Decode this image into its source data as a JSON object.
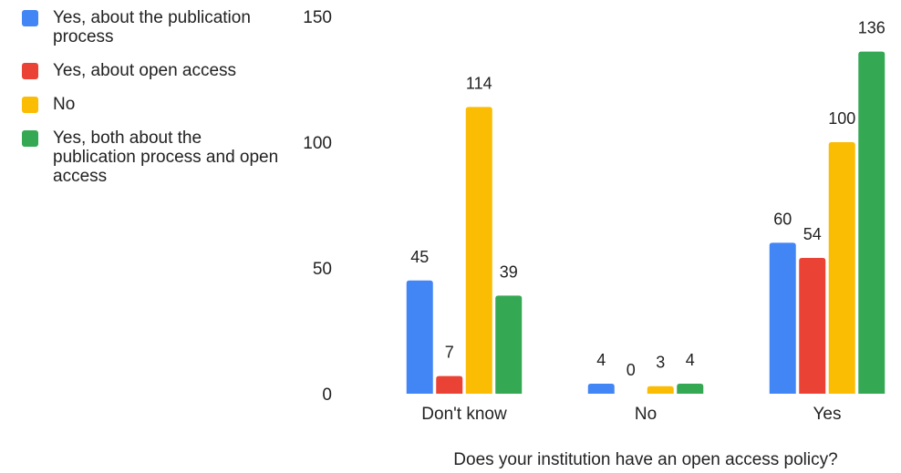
{
  "chart_data": {
    "type": "bar",
    "title": "",
    "xlabel": "Does your institution have an open access policy?",
    "ylabel": "",
    "categories": [
      "Don't know",
      "No",
      "Yes"
    ],
    "yticks": [
      "0",
      "50",
      "100",
      "150"
    ],
    "ylim": [
      0,
      150
    ],
    "grid": false,
    "legend_position": "left",
    "series": [
      {
        "name": "Yes, about the publication process",
        "color": "#4285F4",
        "values": [
          45,
          4,
          60
        ]
      },
      {
        "name": "Yes, about open access",
        "color": "#EA4335",
        "values": [
          7,
          0,
          54
        ]
      },
      {
        "name": "No",
        "color": "#FBBC04",
        "values": [
          114,
          3,
          100
        ]
      },
      {
        "name": "Yes, both about the publication process and open access",
        "color": "#34A853",
        "values": [
          39,
          4,
          136
        ]
      }
    ]
  }
}
